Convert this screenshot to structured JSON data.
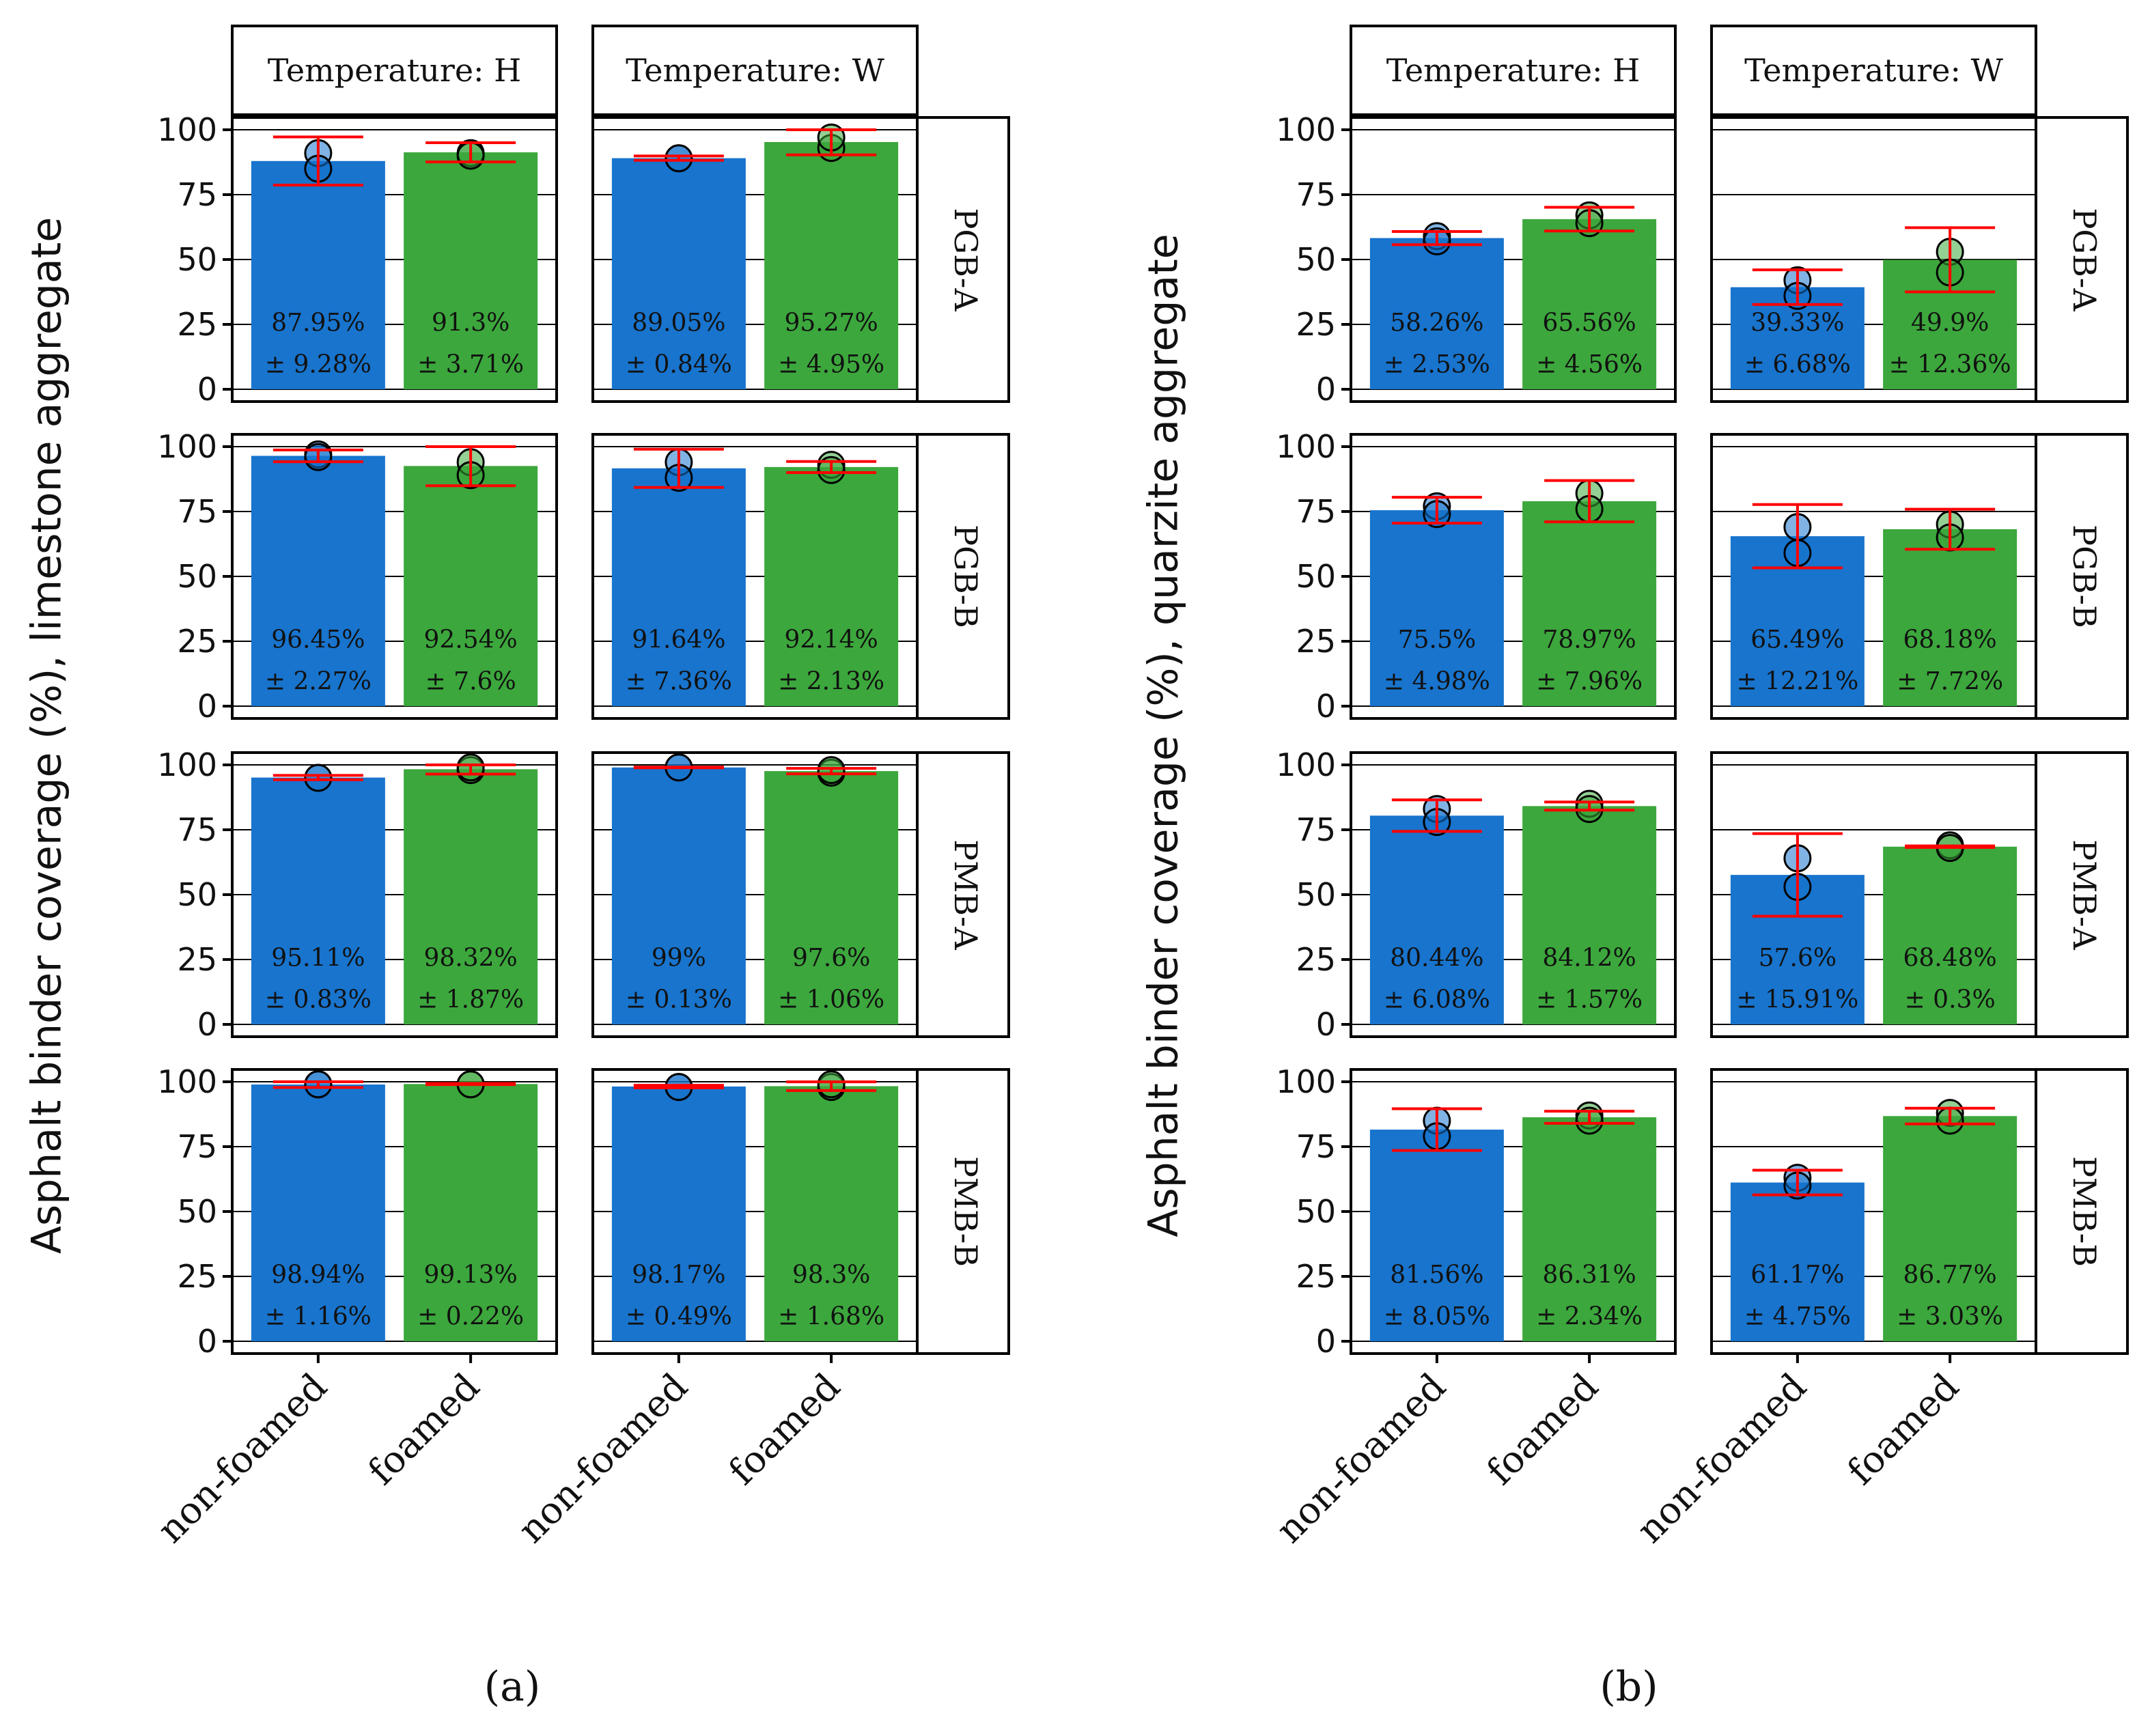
{
  "chart_data": [
    {
      "type": "bar",
      "panel_label": "(a)",
      "ylabel": "Asphalt binder coverage (%), limestone aggregate",
      "ylim": [
        0,
        100
      ],
      "yticks": [
        "0",
        "25",
        "50",
        "75",
        "100"
      ],
      "categories": [
        "non-foamed",
        "foamed"
      ],
      "column_facets": [
        "Temperature: H",
        "Temperature: W"
      ],
      "row_facets": [
        "PGB-A",
        "PGB-B",
        "PMB-A",
        "PMB-B"
      ],
      "colors": {
        "non-foamed": "#1874cd",
        "foamed": "#3ca73c",
        "error": "#ff0000"
      },
      "cells": [
        [
          {
            "values": [
              87.95,
              91.3
            ],
            "labels": [
              "87.95%",
              "91.3%"
            ],
            "errors": [
              9.28,
              3.71
            ],
            "error_labels": [
              "± 9.28%",
              "± 3.71%"
            ],
            "points": [
              [
                91,
                85
              ],
              [
                91,
                90
              ]
            ]
          },
          {
            "values": [
              89.05,
              95.27
            ],
            "labels": [
              "89.05%",
              "95.27%"
            ],
            "errors": [
              0.84,
              4.95
            ],
            "error_labels": [
              "± 0.84%",
              "± 4.95%"
            ],
            "points": [
              [
                89,
                89
              ],
              [
                93,
                97
              ]
            ]
          }
        ],
        [
          {
            "values": [
              96.45,
              92.54
            ],
            "labels": [
              "96.45%",
              "92.54%"
            ],
            "errors": [
              2.27,
              7.6
            ],
            "error_labels": [
              "± 2.27%",
              "± 7.6%"
            ],
            "points": [
              [
                97,
                96
              ],
              [
                94,
                89
              ]
            ]
          },
          {
            "values": [
              91.64,
              92.14
            ],
            "labels": [
              "91.64%",
              "92.14%"
            ],
            "errors": [
              7.36,
              2.13
            ],
            "error_labels": [
              "± 7.36%",
              "± 2.13%"
            ],
            "points": [
              [
                94,
                88
              ],
              [
                93,
                91
              ]
            ]
          }
        ],
        [
          {
            "values": [
              95.11,
              98.32
            ],
            "labels": [
              "95.11%",
              "98.32%"
            ],
            "errors": [
              0.83,
              1.87
            ],
            "error_labels": [
              "± 0.83%",
              "± 1.87%"
            ],
            "points": [
              [
                95,
                95
              ],
              [
                98,
                99
              ]
            ]
          },
          {
            "values": [
              99,
              97.6
            ],
            "labels": [
              "99%",
              "97.6%"
            ],
            "errors": [
              0.13,
              1.06
            ],
            "error_labels": [
              "± 0.13%",
              "± 1.06%"
            ],
            "points": [
              [
                99,
                99
              ],
              [
                97,
                98
              ]
            ]
          }
        ],
        [
          {
            "values": [
              98.94,
              99.13
            ],
            "labels": [
              "98.94%",
              "99.13%"
            ],
            "errors": [
              1.16,
              0.22
            ],
            "error_labels": [
              "± 1.16%",
              "± 0.22%"
            ],
            "points": [
              [
                99,
                99
              ],
              [
                99,
                99
              ]
            ]
          },
          {
            "values": [
              98.17,
              98.3
            ],
            "labels": [
              "98.17%",
              "98.3%"
            ],
            "errors": [
              0.49,
              1.68
            ],
            "error_labels": [
              "± 0.49%",
              "± 1.68%"
            ],
            "points": [
              [
                98,
                98
              ],
              [
                98,
                99
              ]
            ]
          }
        ]
      ]
    },
    {
      "type": "bar",
      "panel_label": "(b)",
      "ylabel": "Asphalt binder coverage (%), quarzite aggregate",
      "ylim": [
        0,
        100
      ],
      "yticks": [
        "0",
        "25",
        "50",
        "75",
        "100"
      ],
      "categories": [
        "non-foamed",
        "foamed"
      ],
      "column_facets": [
        "Temperature: H",
        "Temperature: W"
      ],
      "row_facets": [
        "PGB-A",
        "PGB-B",
        "PMB-A",
        "PMB-B"
      ],
      "colors": {
        "non-foamed": "#1874cd",
        "foamed": "#3ca73c",
        "error": "#ff0000"
      },
      "cells": [
        [
          {
            "values": [
              58.26,
              65.56
            ],
            "labels": [
              "58.26%",
              "65.56%"
            ],
            "errors": [
              2.53,
              4.56
            ],
            "error_labels": [
              "± 2.53%",
              "± 4.56%"
            ],
            "points": [
              [
                59,
                57
              ],
              [
                67,
                64
              ]
            ]
          },
          {
            "values": [
              39.33,
              49.9
            ],
            "labels": [
              "39.33%",
              "49.9%"
            ],
            "errors": [
              6.68,
              12.36
            ],
            "error_labels": [
              "± 6.68%",
              "± 12.36%"
            ],
            "points": [
              [
                42,
                36
              ],
              [
                53,
                45
              ]
            ]
          }
        ],
        [
          {
            "values": [
              75.5,
              78.97
            ],
            "labels": [
              "75.5%",
              "78.97%"
            ],
            "errors": [
              4.98,
              7.96
            ],
            "error_labels": [
              "± 4.98%",
              "± 7.96%"
            ],
            "points": [
              [
                77,
                74
              ],
              [
                82,
                76
              ]
            ]
          },
          {
            "values": [
              65.49,
              68.18
            ],
            "labels": [
              "65.49%",
              "68.18%"
            ],
            "errors": [
              12.21,
              7.72
            ],
            "error_labels": [
              "± 12.21%",
              "± 7.72%"
            ],
            "points": [
              [
                69,
                59
              ],
              [
                70,
                65
              ]
            ]
          }
        ],
        [
          {
            "values": [
              80.44,
              84.12
            ],
            "labels": [
              "80.44%",
              "84.12%"
            ],
            "errors": [
              6.08,
              1.57
            ],
            "error_labels": [
              "± 6.08%",
              "± 1.57%"
            ],
            "points": [
              [
                83,
                78
              ],
              [
                85,
                83
              ]
            ]
          },
          {
            "values": [
              57.6,
              68.48
            ],
            "labels": [
              "57.6%",
              "68.48%"
            ],
            "errors": [
              15.91,
              0.3
            ],
            "error_labels": [
              "± 15.91%",
              "± 0.3%"
            ],
            "points": [
              [
                64,
                53
              ],
              [
                69,
                68
              ]
            ]
          }
        ],
        [
          {
            "values": [
              81.56,
              86.31
            ],
            "labels": [
              "81.56%",
              "86.31%"
            ],
            "errors": [
              8.05,
              2.34
            ],
            "error_labels": [
              "± 8.05%",
              "± 2.34%"
            ],
            "points": [
              [
                85,
                79
              ],
              [
                87,
                85
              ]
            ]
          },
          {
            "values": [
              61.17,
              86.77
            ],
            "labels": [
              "61.17%",
              "86.77%"
            ],
            "errors": [
              4.75,
              3.03
            ],
            "error_labels": [
              "± 4.75%",
              "± 3.03%"
            ],
            "points": [
              [
                63,
                60
              ],
              [
                88,
                85
              ]
            ]
          }
        ]
      ]
    }
  ]
}
